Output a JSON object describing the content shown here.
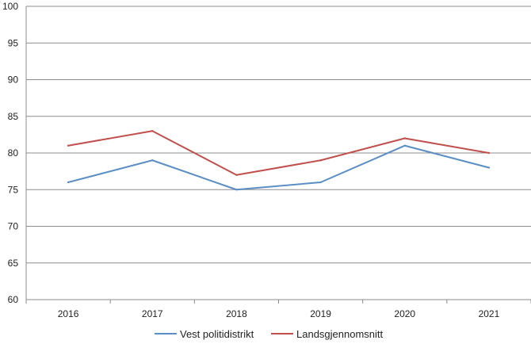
{
  "chart_data": {
    "type": "line",
    "title": "",
    "xlabel": "",
    "ylabel": "",
    "categories": [
      "2016",
      "2017",
      "2018",
      "2019",
      "2020",
      "2021"
    ],
    "ylim": [
      60,
      100
    ],
    "yticks": [
      "60",
      "65",
      "70",
      "75",
      "80",
      "85",
      "90",
      "95",
      "100"
    ],
    "grid": "horizontal",
    "legend": "bottom",
    "series": [
      {
        "name": "Vest politidistrikt",
        "color": "#5b8ec5",
        "values": [
          76,
          79,
          75,
          76,
          81,
          78
        ]
      },
      {
        "name": "Landsgjennomsnitt",
        "color": "#c0504d",
        "values": [
          81,
          83,
          77,
          79,
          82,
          80
        ]
      }
    ]
  }
}
